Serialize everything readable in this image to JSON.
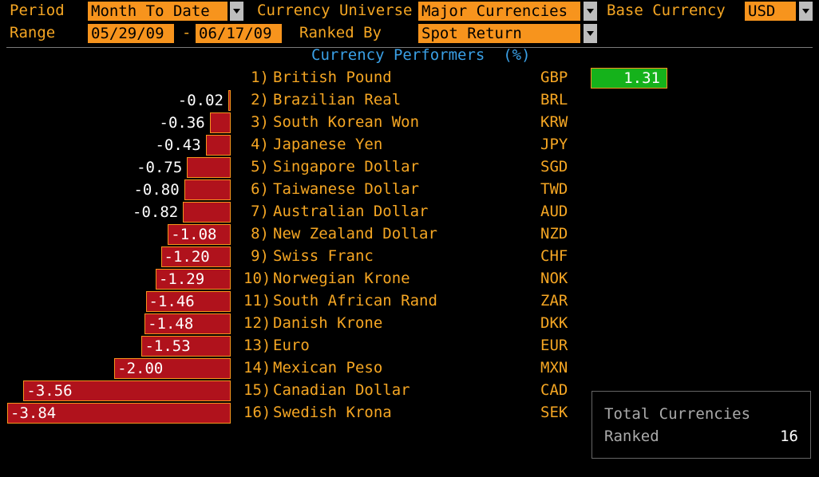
{
  "header": {
    "period_label": "Period",
    "period_value": "Month To Date",
    "universe_label": "Currency Universe",
    "universe_value": "Major Currencies",
    "base_label": "Base Currency",
    "base_value": "USD",
    "range_label": "Range",
    "range_start": "05/29/09",
    "range_sep": "-",
    "range_end": "06/17/09",
    "ranked_label": "Ranked By",
    "ranked_value": "Spot Return"
  },
  "chart_title": "Currency Performers  (%)",
  "chart_data": {
    "type": "bar",
    "title": "Currency Performers (%)",
    "categories": [
      "British Pound",
      "Brazilian Real",
      "South Korean Won",
      "Japanese Yen",
      "Singapore Dollar",
      "Taiwanese Dollar",
      "Australian Dollar",
      "New Zealand Dollar",
      "Swiss Franc",
      "Norwegian Krone",
      "South African Rand",
      "Danish Krone",
      "Euro",
      "Mexican Peso",
      "Canadian Dollar",
      "Swedish Krona"
    ],
    "series": [
      {
        "values": [
          1.31,
          -0.02,
          -0.36,
          -0.43,
          -0.75,
          -0.8,
          -0.82,
          -1.08,
          -1.2,
          -1.29,
          -1.46,
          -1.48,
          -1.53,
          -2.0,
          -3.56,
          -3.84
        ]
      }
    ]
  },
  "rows": [
    {
      "rank": "1)",
      "name": "British Pound",
      "code": "GBP",
      "value": "1.31",
      "num": 1.31
    },
    {
      "rank": "2)",
      "name": "Brazilian Real",
      "code": "BRL",
      "value": "-0.02",
      "num": -0.02
    },
    {
      "rank": "3)",
      "name": "South Korean Won",
      "code": "KRW",
      "value": "-0.36",
      "num": -0.36
    },
    {
      "rank": "4)",
      "name": "Japanese Yen",
      "code": "JPY",
      "value": "-0.43",
      "num": -0.43
    },
    {
      "rank": "5)",
      "name": "Singapore Dollar",
      "code": "SGD",
      "value": "-0.75",
      "num": -0.75
    },
    {
      "rank": "6)",
      "name": "Taiwanese Dollar",
      "code": "TWD",
      "value": "-0.80",
      "num": -0.8
    },
    {
      "rank": "7)",
      "name": "Australian Dollar",
      "code": "AUD",
      "value": "-0.82",
      "num": -0.82
    },
    {
      "rank": "8)",
      "name": "New Zealand Dollar",
      "code": "NZD",
      "value": "-1.08",
      "num": -1.08
    },
    {
      "rank": "9)",
      "name": "Swiss Franc",
      "code": "CHF",
      "value": "-1.20",
      "num": -1.2
    },
    {
      "rank": "10)",
      "name": "Norwegian Krone",
      "code": "NOK",
      "value": "-1.29",
      "num": -1.29
    },
    {
      "rank": "11)",
      "name": "South African Rand",
      "code": "ZAR",
      "value": "-1.46",
      "num": -1.46
    },
    {
      "rank": "12)",
      "name": "Danish Krone",
      "code": "DKK",
      "value": "-1.48",
      "num": -1.48
    },
    {
      "rank": "13)",
      "name": "Euro",
      "code": "EUR",
      "value": "-1.53",
      "num": -1.53
    },
    {
      "rank": "14)",
      "name": "Mexican Peso",
      "code": "MXN",
      "value": "-2.00",
      "num": -2.0
    },
    {
      "rank": "15)",
      "name": "Canadian Dollar",
      "code": "CAD",
      "value": "-3.56",
      "num": -3.56
    },
    {
      "rank": "16)",
      "name": "Swedish Krona",
      "code": "SEK",
      "value": "-3.84",
      "num": -3.84
    }
  ],
  "summary": {
    "line1": "Total Currencies",
    "line2": "Ranked",
    "count": "16"
  },
  "colors": {
    "label": "#f5a623",
    "field_bg": "#f7941d",
    "negative_bar": "#b0121c",
    "positive_bar": "#15b21b",
    "title": "#3aa0e6"
  }
}
